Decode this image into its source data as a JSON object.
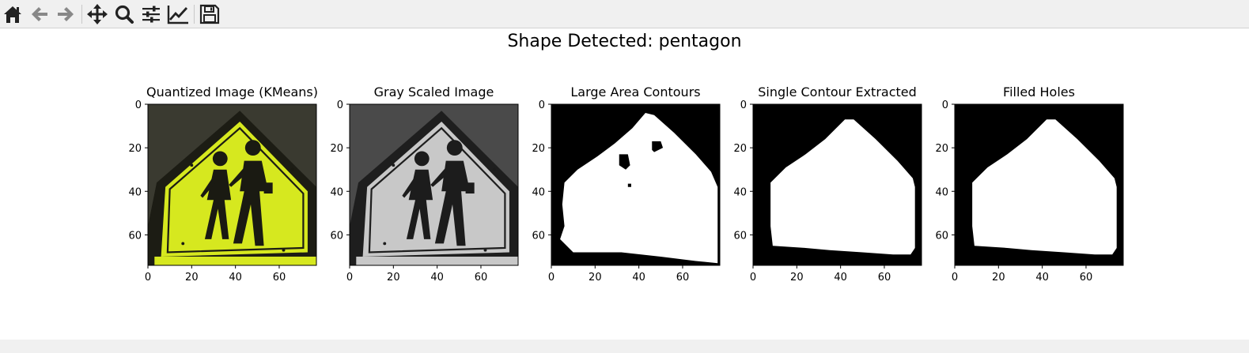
{
  "toolbar": {
    "buttons": [
      {
        "name": "home-button",
        "icon": "home-icon"
      },
      {
        "name": "back-button",
        "icon": "arrow-left-icon"
      },
      {
        "name": "forward-button",
        "icon": "arrow-right-icon"
      },
      {
        "name": "pan-button",
        "icon": "move-icon"
      },
      {
        "name": "zoom-button",
        "icon": "magnifier-icon"
      },
      {
        "name": "configure-subplots-button",
        "icon": "sliders-icon"
      },
      {
        "name": "edit-axis-button",
        "icon": "line-chart-icon"
      },
      {
        "name": "save-button",
        "icon": "floppy-disk-icon"
      }
    ]
  },
  "figure": {
    "suptitle": "Shape Detected: pentagon"
  },
  "chart_data": [
    {
      "type": "image",
      "title": "Quantized Image (KMeans)",
      "colormap": "color",
      "xticks": [
        "0",
        "20",
        "40",
        "60"
      ],
      "yticks": [
        "0",
        "20",
        "40",
        "60"
      ],
      "xlim": [
        0,
        77
      ],
      "ylim": [
        74,
        0
      ]
    },
    {
      "type": "image",
      "title": "Gray Scaled Image",
      "colormap": "gray",
      "xticks": [
        "0",
        "20",
        "40",
        "60"
      ],
      "yticks": [
        "0",
        "20",
        "40",
        "60"
      ],
      "xlim": [
        0,
        77
      ],
      "ylim": [
        74,
        0
      ]
    },
    {
      "type": "image",
      "title": "Large Area Contours",
      "colormap": "binary",
      "xticks": [
        "0",
        "20",
        "40",
        "60"
      ],
      "yticks": [
        "0",
        "20",
        "40",
        "60"
      ],
      "xlim": [
        0,
        77
      ],
      "ylim": [
        74,
        0
      ]
    },
    {
      "type": "image",
      "title": "Single Contour Extracted",
      "colormap": "binary",
      "xticks": [
        "0",
        "20",
        "40",
        "60"
      ],
      "yticks": [
        "0",
        "20",
        "40",
        "60"
      ],
      "xlim": [
        0,
        77
      ],
      "ylim": [
        74,
        0
      ]
    },
    {
      "type": "image",
      "title": "Filled Holes",
      "colormap": "binary",
      "xticks": [
        "0",
        "20",
        "40",
        "60"
      ],
      "yticks": [
        "0",
        "20",
        "40",
        "60"
      ],
      "xlim": [
        0,
        77
      ],
      "ylim": [
        74,
        0
      ]
    }
  ],
  "colors": {
    "sign_yellow": "#d6e81f",
    "sign_edge": "#1c1c14",
    "background_dark": "#3a3a30",
    "toolbar_bg": "#f0f0f0"
  }
}
